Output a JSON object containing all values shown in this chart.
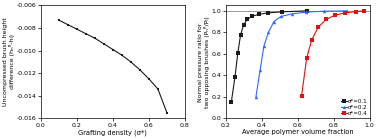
{
  "left_plot": {
    "xlabel": "Grafting density (σ*)",
    "ylabel": "Uncompressed brush height\ndifference (hₙᴿ-hₗ)",
    "xlim": [
      0.0,
      0.8
    ],
    "ylim": [
      -0.016,
      -0.006
    ],
    "yticks": [
      -0.016,
      -0.014,
      -0.012,
      -0.01,
      -0.008,
      -0.006
    ],
    "xticks": [
      0.0,
      0.2,
      0.4,
      0.6,
      0.8
    ],
    "x": [
      0.1,
      0.15,
      0.2,
      0.25,
      0.3,
      0.35,
      0.4,
      0.45,
      0.5,
      0.55,
      0.6,
      0.65,
      0.7
    ],
    "y": [
      -0.0073,
      -0.0077,
      -0.0081,
      -0.0085,
      -0.0089,
      -0.0094,
      -0.0099,
      -0.0104,
      -0.011,
      -0.0117,
      -0.0125,
      -0.0134,
      -0.0155
    ],
    "line_color": "#1a1a1a",
    "marker": "s",
    "markersize": 1.8,
    "linewidth": 0.8
  },
  "right_plot": {
    "xlabel": "Average polymer volume fraction",
    "ylabel": "Normal pressure ratio for\ntwo opposing brushes (Pₙᴿ/Pₗ)",
    "xlim": [
      0.2,
      1.0
    ],
    "ylim": [
      0.0,
      1.05
    ],
    "yticks": [
      0.0,
      0.2,
      0.4,
      0.6,
      0.8,
      1.0
    ],
    "xticks": [
      0.2,
      0.4,
      0.6,
      0.8,
      1.0
    ],
    "series": [
      {
        "label": "σ*=0.1",
        "color": "#1a1a1a",
        "marker": "s",
        "x": [
          0.232,
          0.252,
          0.268,
          0.283,
          0.3,
          0.32,
          0.348,
          0.385,
          0.435,
          0.515,
          0.65
        ],
        "y": [
          0.155,
          0.385,
          0.61,
          0.775,
          0.87,
          0.92,
          0.95,
          0.968,
          0.981,
          0.991,
          1.0
        ]
      },
      {
        "label": "σ*=0.2",
        "color": "#3366ff",
        "marker": "^",
        "x": [
          0.368,
          0.392,
          0.413,
          0.438,
          0.468,
          0.508,
          0.568,
          0.648,
          0.748,
          0.875
        ],
        "y": [
          0.195,
          0.455,
          0.675,
          0.8,
          0.9,
          0.948,
          0.972,
          0.988,
          0.997,
          1.0
        ]
      },
      {
        "label": "σ*=0.4",
        "color": "#dd1111",
        "marker": "s",
        "x": [
          0.622,
          0.65,
          0.678,
          0.715,
          0.758,
          0.808,
          0.865,
          0.925,
          0.968
        ],
        "y": [
          0.21,
          0.56,
          0.73,
          0.85,
          0.92,
          0.96,
          0.982,
          0.993,
          1.0
        ]
      }
    ],
    "hline_y": 1.0,
    "hline_color": "#999999",
    "markersize": 2.5,
    "linewidth": 0.8
  }
}
